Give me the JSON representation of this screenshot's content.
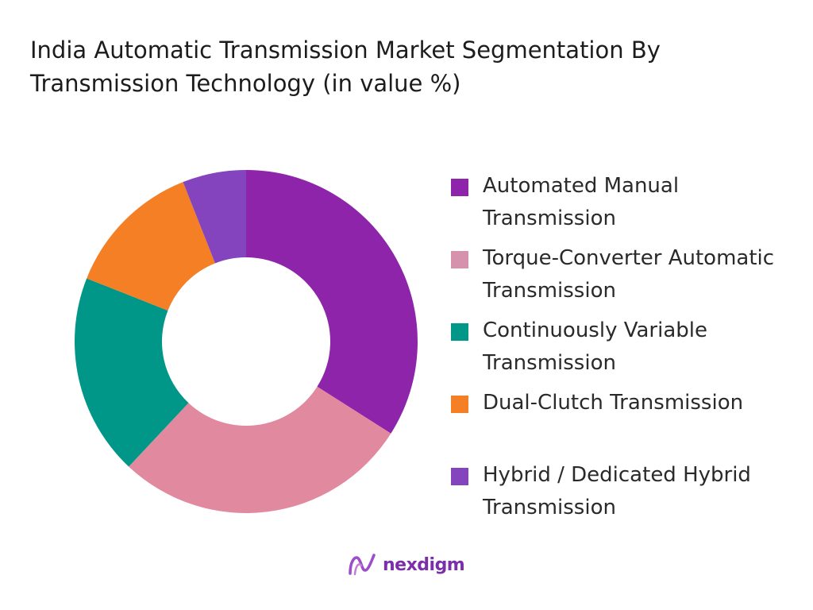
{
  "chart_data": {
    "type": "pie",
    "donut": true,
    "title": "India Automatic Transmission Market Segmentation By Transmission Technology (in value %)",
    "categories": [
      "Automated Manual Transmission",
      "Torque-Converter Automatic Transmission",
      "Continuously Variable Transmission",
      "Dual-Clutch Transmission",
      "Hybrid / Dedicated Hybrid Transmission"
    ],
    "values": [
      34,
      28,
      19,
      13,
      6
    ],
    "colors": [
      "#8e24aa",
      "#e0899f",
      "#009688",
      "#f57f25",
      "#8344be"
    ],
    "legend_placement": "right"
  },
  "legend": [
    {
      "label": "Automated Manual Transmission",
      "color": "#8e24aa"
    },
    {
      "label": "Torque-Converter Automatic Transmission",
      "color": "#d691ad"
    },
    {
      "label": "Continuously Variable Transmission",
      "color": "#009688"
    },
    {
      "label": "Dual-Clutch Transmission",
      "color": "#f57f25"
    },
    {
      "label": "Hybrid / Dedicated Hybrid Transmission",
      "color": "#8344be"
    }
  ],
  "brand": {
    "name": "nexdigm",
    "color": "#7b2fa8"
  }
}
